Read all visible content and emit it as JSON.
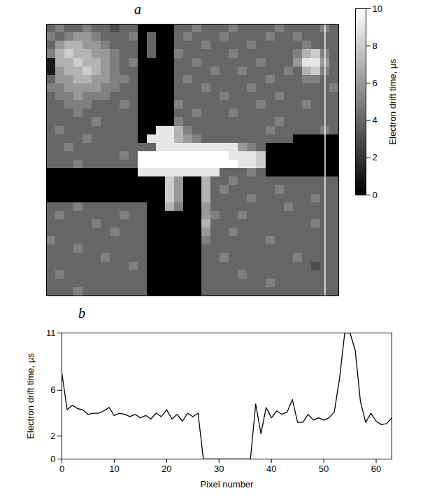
{
  "chart_data": [
    {
      "type": "heatmap",
      "panel": "a",
      "tick_labels": false,
      "profile_column": 30,
      "colorbar": {
        "label": "Electron drift time, µs",
        "range": [
          0,
          10
        ],
        "ticks": [
          0,
          2,
          4,
          6,
          8,
          10
        ],
        "colors": [
          "#000000",
          "#ffffff"
        ]
      },
      "cells": [
        [
          4,
          5,
          4,
          4,
          5,
          4,
          4,
          3,
          4,
          4,
          0,
          0,
          0,
          0,
          4,
          4,
          5,
          4,
          4,
          4,
          5,
          4,
          4,
          4,
          4,
          5,
          4,
          4,
          4,
          4,
          5,
          4
        ],
        [
          5,
          4,
          5,
          6,
          6,
          5,
          4,
          4,
          4,
          5,
          0,
          4,
          0,
          0,
          4,
          5,
          4,
          4,
          4,
          5,
          4,
          4,
          4,
          4,
          5,
          4,
          4,
          5,
          4,
          4,
          4,
          4
        ],
        [
          4,
          6,
          7,
          7,
          6,
          6,
          5,
          4,
          4,
          4,
          0,
          4,
          0,
          0,
          4,
          4,
          4,
          5,
          4,
          4,
          4,
          4,
          5,
          4,
          4,
          4,
          4,
          4,
          5,
          4,
          4,
          4
        ],
        [
          5,
          7,
          8,
          7,
          7,
          6,
          6,
          5,
          4,
          4,
          0,
          4,
          0,
          0,
          5,
          4,
          4,
          4,
          4,
          4,
          5,
          4,
          4,
          4,
          4,
          4,
          4,
          5,
          7,
          8,
          5,
          4
        ],
        [
          1,
          7,
          7,
          8,
          7,
          7,
          6,
          5,
          4,
          5,
          0,
          0,
          0,
          0,
          4,
          4,
          5,
          4,
          4,
          4,
          4,
          4,
          4,
          5,
          4,
          4,
          4,
          6,
          9,
          9,
          6,
          4
        ],
        [
          1,
          6,
          7,
          7,
          8,
          7,
          6,
          5,
          4,
          4,
          0,
          0,
          0,
          0,
          4,
          4,
          4,
          4,
          5,
          4,
          4,
          5,
          4,
          4,
          4,
          4,
          5,
          4,
          7,
          8,
          5,
          4
        ],
        [
          4,
          6,
          6,
          7,
          7,
          6,
          6,
          5,
          5,
          4,
          0,
          0,
          0,
          0,
          4,
          5,
          4,
          4,
          4,
          4,
          4,
          4,
          4,
          4,
          5,
          4,
          4,
          4,
          5,
          5,
          4,
          4
        ],
        [
          5,
          5,
          6,
          6,
          6,
          6,
          5,
          5,
          4,
          4,
          0,
          0,
          0,
          0,
          4,
          4,
          4,
          5,
          4,
          4,
          4,
          4,
          5,
          4,
          4,
          4,
          4,
          4,
          4,
          4,
          4,
          5
        ],
        [
          4,
          5,
          5,
          6,
          5,
          5,
          5,
          4,
          4,
          4,
          0,
          0,
          0,
          0,
          4,
          4,
          4,
          4,
          4,
          5,
          4,
          4,
          4,
          4,
          4,
          5,
          4,
          4,
          4,
          4,
          4,
          4
        ],
        [
          4,
          4,
          5,
          5,
          5,
          4,
          4,
          4,
          5,
          4,
          0,
          0,
          0,
          0,
          5,
          4,
          4,
          4,
          4,
          4,
          4,
          4,
          4,
          5,
          4,
          4,
          4,
          4,
          5,
          4,
          4,
          4
        ],
        [
          4,
          4,
          4,
          5,
          4,
          4,
          4,
          4,
          4,
          4,
          0,
          0,
          0,
          0,
          4,
          4,
          5,
          4,
          4,
          4,
          5,
          4,
          4,
          4,
          4,
          4,
          4,
          4,
          4,
          4,
          4,
          4
        ],
        [
          4,
          4,
          4,
          4,
          4,
          5,
          4,
          4,
          4,
          4,
          0,
          0,
          0,
          0,
          5,
          4,
          4,
          4,
          4,
          4,
          4,
          4,
          4,
          4,
          4,
          5,
          4,
          4,
          4,
          4,
          4,
          4
        ],
        [
          4,
          5,
          4,
          4,
          4,
          4,
          4,
          4,
          4,
          4,
          0,
          0,
          9,
          9,
          7,
          5,
          4,
          4,
          4,
          4,
          4,
          4,
          4,
          4,
          5,
          4,
          4,
          4,
          4,
          4,
          5,
          4
        ],
        [
          4,
          4,
          4,
          4,
          5,
          4,
          4,
          4,
          4,
          4,
          0,
          9,
          9,
          9,
          7,
          6,
          5,
          4,
          4,
          4,
          4,
          4,
          4,
          4,
          4,
          4,
          4,
          0,
          0,
          0,
          0,
          0
        ],
        [
          4,
          4,
          5,
          4,
          4,
          4,
          4,
          4,
          4,
          4,
          4,
          4,
          9,
          9,
          9,
          9,
          9,
          9,
          9,
          9,
          9,
          6,
          5,
          4,
          0,
          0,
          0,
          0,
          0,
          0,
          0,
          0
        ],
        [
          4,
          4,
          4,
          4,
          4,
          4,
          4,
          4,
          5,
          4,
          10,
          10,
          10,
          10,
          10,
          10,
          10,
          10,
          10,
          10,
          9,
          9,
          9,
          8,
          0,
          0,
          0,
          0,
          0,
          0,
          0,
          0
        ],
        [
          4,
          4,
          4,
          5,
          4,
          4,
          4,
          4,
          4,
          4,
          10,
          10,
          10,
          10,
          10,
          10,
          10,
          10,
          10,
          10,
          10,
          9,
          9,
          8,
          0,
          0,
          0,
          0,
          0,
          0,
          0,
          0
        ],
        [
          0,
          0,
          0,
          0,
          0,
          0,
          0,
          0,
          0,
          0,
          9,
          9,
          9,
          9,
          9,
          9,
          9,
          9,
          9,
          4,
          4,
          4,
          5,
          4,
          0,
          0,
          0,
          0,
          0,
          0,
          0,
          0
        ],
        [
          0,
          0,
          0,
          0,
          0,
          0,
          0,
          0,
          0,
          0,
          0,
          0,
          0,
          8,
          6,
          0,
          0,
          7,
          4,
          4,
          5,
          4,
          4,
          4,
          4,
          4,
          4,
          4,
          4,
          4,
          4,
          4
        ],
        [
          0,
          0,
          0,
          0,
          0,
          0,
          0,
          0,
          0,
          0,
          0,
          0,
          0,
          8,
          6,
          0,
          0,
          7,
          4,
          5,
          4,
          4,
          4,
          4,
          4,
          5,
          4,
          4,
          4,
          4,
          4,
          4
        ],
        [
          0,
          0,
          0,
          0,
          0,
          0,
          0,
          0,
          0,
          0,
          0,
          0,
          0,
          8,
          6,
          0,
          0,
          7,
          4,
          4,
          4,
          4,
          5,
          4,
          4,
          4,
          4,
          4,
          4,
          5,
          4,
          4
        ],
        [
          4,
          4,
          4,
          5,
          4,
          4,
          4,
          4,
          4,
          4,
          4,
          0,
          0,
          7,
          5,
          0,
          0,
          6,
          4,
          4,
          4,
          4,
          4,
          4,
          4,
          4,
          5,
          4,
          4,
          4,
          4,
          4
        ],
        [
          4,
          5,
          4,
          4,
          4,
          4,
          4,
          4,
          5,
          4,
          4,
          0,
          0,
          0,
          0,
          0,
          0,
          6,
          5,
          4,
          4,
          5,
          4,
          4,
          4,
          4,
          4,
          4,
          4,
          4,
          4,
          4
        ],
        [
          4,
          4,
          4,
          4,
          4,
          5,
          4,
          4,
          4,
          4,
          4,
          0,
          0,
          0,
          0,
          0,
          0,
          7,
          4,
          4,
          4,
          4,
          4,
          4,
          4,
          4,
          4,
          4,
          4,
          5,
          4,
          4
        ],
        [
          4,
          4,
          4,
          4,
          4,
          4,
          4,
          5,
          4,
          4,
          4,
          0,
          0,
          0,
          0,
          0,
          0,
          6,
          4,
          4,
          5,
          4,
          4,
          4,
          4,
          4,
          4,
          4,
          4,
          4,
          4,
          4
        ],
        [
          5,
          4,
          4,
          4,
          4,
          4,
          4,
          4,
          4,
          4,
          4,
          0,
          0,
          0,
          0,
          0,
          0,
          5,
          4,
          4,
          4,
          4,
          4,
          4,
          5,
          4,
          4,
          4,
          4,
          4,
          4,
          4
        ],
        [
          4,
          4,
          4,
          5,
          4,
          4,
          4,
          4,
          4,
          4,
          4,
          0,
          0,
          0,
          0,
          0,
          0,
          4,
          4,
          4,
          4,
          4,
          4,
          4,
          4,
          4,
          4,
          4,
          4,
          4,
          4,
          4
        ],
        [
          4,
          4,
          4,
          4,
          4,
          4,
          5,
          4,
          4,
          4,
          4,
          0,
          0,
          0,
          0,
          0,
          0,
          4,
          4,
          5,
          4,
          4,
          4,
          4,
          4,
          4,
          4,
          5,
          4,
          4,
          4,
          4
        ],
        [
          4,
          4,
          4,
          4,
          4,
          4,
          4,
          4,
          4,
          5,
          4,
          0,
          0,
          0,
          0,
          0,
          0,
          4,
          4,
          4,
          4,
          4,
          4,
          4,
          4,
          4,
          4,
          4,
          4,
          3,
          4,
          4
        ],
        [
          4,
          5,
          4,
          4,
          4,
          4,
          4,
          4,
          4,
          4,
          4,
          0,
          0,
          0,
          0,
          0,
          0,
          4,
          4,
          4,
          4,
          5,
          4,
          4,
          4,
          4,
          4,
          4,
          4,
          4,
          4,
          4
        ],
        [
          4,
          4,
          4,
          4,
          4,
          4,
          4,
          4,
          4,
          4,
          4,
          0,
          0,
          0,
          0,
          0,
          0,
          4,
          4,
          4,
          4,
          4,
          4,
          4,
          5,
          4,
          4,
          4,
          4,
          4,
          4,
          4
        ],
        [
          4,
          4,
          4,
          5,
          4,
          4,
          4,
          4,
          4,
          4,
          4,
          0,
          0,
          0,
          0,
          0,
          0,
          4,
          4,
          4,
          4,
          4,
          4,
          4,
          4,
          4,
          4,
          4,
          4,
          4,
          4,
          4
        ]
      ]
    },
    {
      "type": "line",
      "panel": "b",
      "color": "#000000",
      "xlabel": "Pixel number",
      "ylabel": "Electron drift time, µs",
      "xlim": [
        0,
        63
      ],
      "xticks": [
        0,
        10,
        20,
        30,
        40,
        50,
        60
      ],
      "ylim": [
        0,
        11
      ],
      "yticks": [
        0,
        2,
        6,
        11
      ],
      "x": [
        0,
        1,
        2,
        3,
        4,
        5,
        6,
        7,
        8,
        9,
        10,
        11,
        12,
        13,
        14,
        15,
        16,
        17,
        18,
        19,
        20,
        21,
        22,
        23,
        24,
        25,
        26,
        27,
        28,
        29,
        30,
        31,
        32,
        33,
        34,
        35,
        36,
        37,
        38,
        39,
        40,
        41,
        42,
        43,
        44,
        45,
        46,
        47,
        48,
        49,
        50,
        51,
        52,
        53,
        54,
        55,
        56,
        57,
        58,
        59,
        60,
        61,
        62,
        63
      ],
      "values": [
        7.5,
        4.3,
        4.7,
        4.4,
        4.3,
        3.9,
        4.0,
        4.0,
        4.2,
        4.5,
        3.8,
        4.0,
        3.9,
        3.7,
        3.9,
        3.6,
        3.8,
        3.5,
        4.0,
        3.7,
        4.3,
        3.5,
        3.9,
        3.3,
        4.0,
        3.7,
        4.0,
        0,
        0,
        0,
        0,
        0,
        0,
        0,
        0,
        0,
        0,
        4.8,
        2.2,
        4.5,
        3.6,
        4.2,
        3.9,
        4.1,
        5.2,
        3.2,
        3.2,
        3.9,
        3.4,
        3.6,
        3.4,
        3.6,
        4.1,
        7.0,
        11,
        11,
        9.5,
        5.0,
        3.2,
        4.0,
        3.3,
        3.0,
        3.1,
        3.6
      ]
    }
  ]
}
